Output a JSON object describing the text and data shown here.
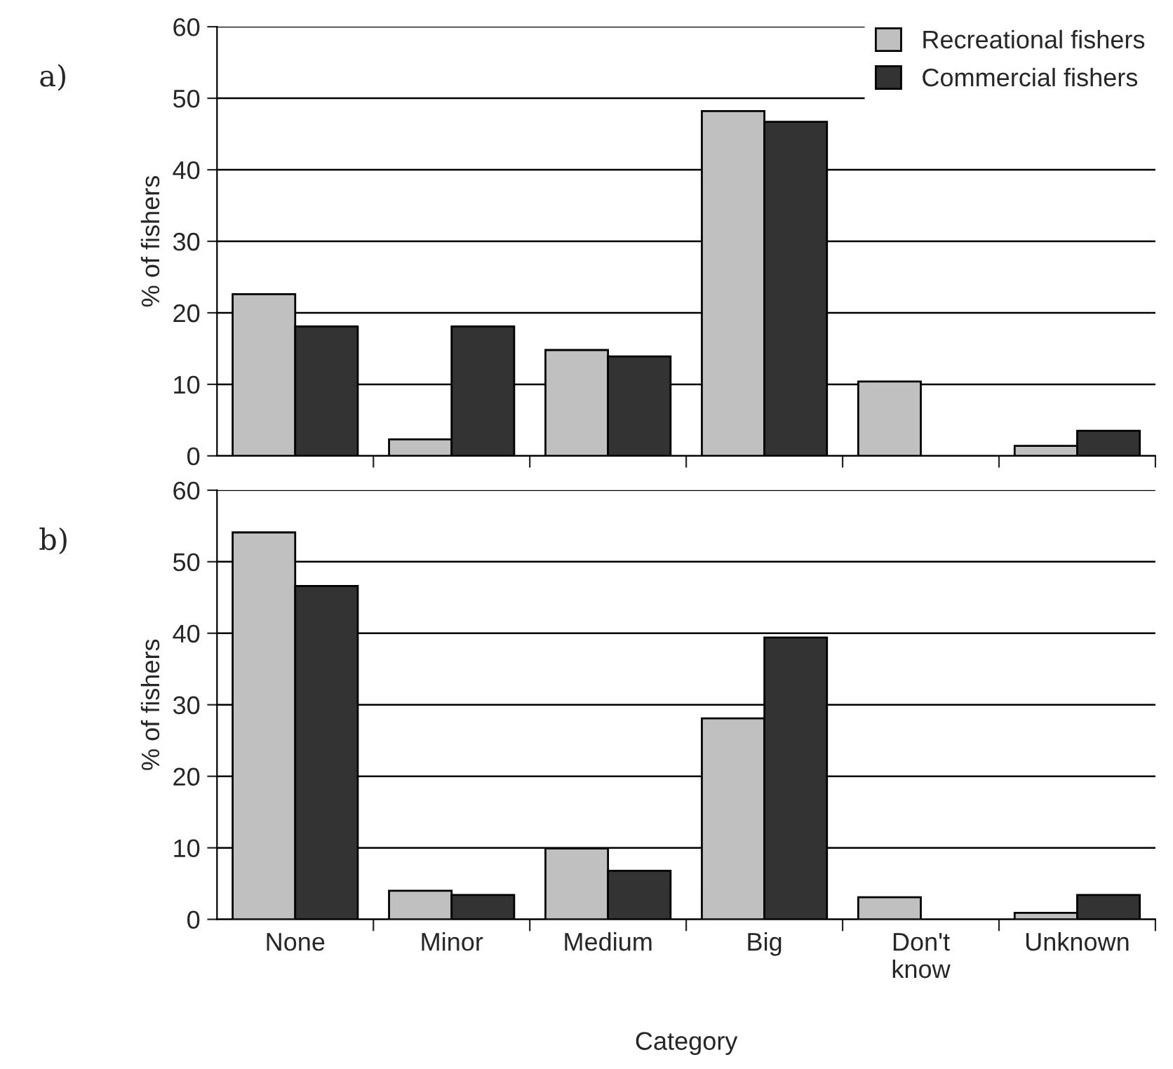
{
  "chart_data": [
    {
      "type": "bar",
      "categories": [
        null,
        null,
        null,
        null,
        null,
        null
      ],
      "ylabel": "% of fishers",
      "annotations": [
        "a)"
      ],
      "ylim": [
        0,
        60
      ],
      "yticks": [
        0,
        10,
        20,
        30,
        40,
        50,
        60
      ],
      "grid": "y",
      "legend": "top right",
      "tick_labels": "y",
      "series": [
        {
          "name": "Recreational fishers",
          "color": "#c0c0c0",
          "values": [
            22.6,
            2.3,
            14.8,
            48.2,
            10.4,
            1.4
          ]
        },
        {
          "name": "Commercial fishers",
          "color": "#333333",
          "values": [
            18.1,
            18.1,
            13.9,
            46.7,
            null,
            3.5
          ]
        }
      ]
    },
    {
      "type": "bar",
      "categories": [
        "None",
        "Minor",
        "Medium",
        "Big",
        "Don't\nknow",
        "Unknown"
      ],
      "ylabel": "% of fishers",
      "xlabel": "Category",
      "annotations": [
        "b)"
      ],
      "ylim": [
        0,
        60
      ],
      "yticks": [
        0,
        10,
        20,
        30,
        40,
        50,
        60
      ],
      "grid": "y",
      "series": [
        {
          "color": "#c0c0c0",
          "values": [
            54.1,
            4.0,
            9.9,
            28.1,
            3.1,
            0.9
          ]
        },
        {
          "color": "#333333",
          "values": [
            46.6,
            3.4,
            6.8,
            39.4,
            null,
            3.4
          ]
        }
      ]
    }
  ]
}
